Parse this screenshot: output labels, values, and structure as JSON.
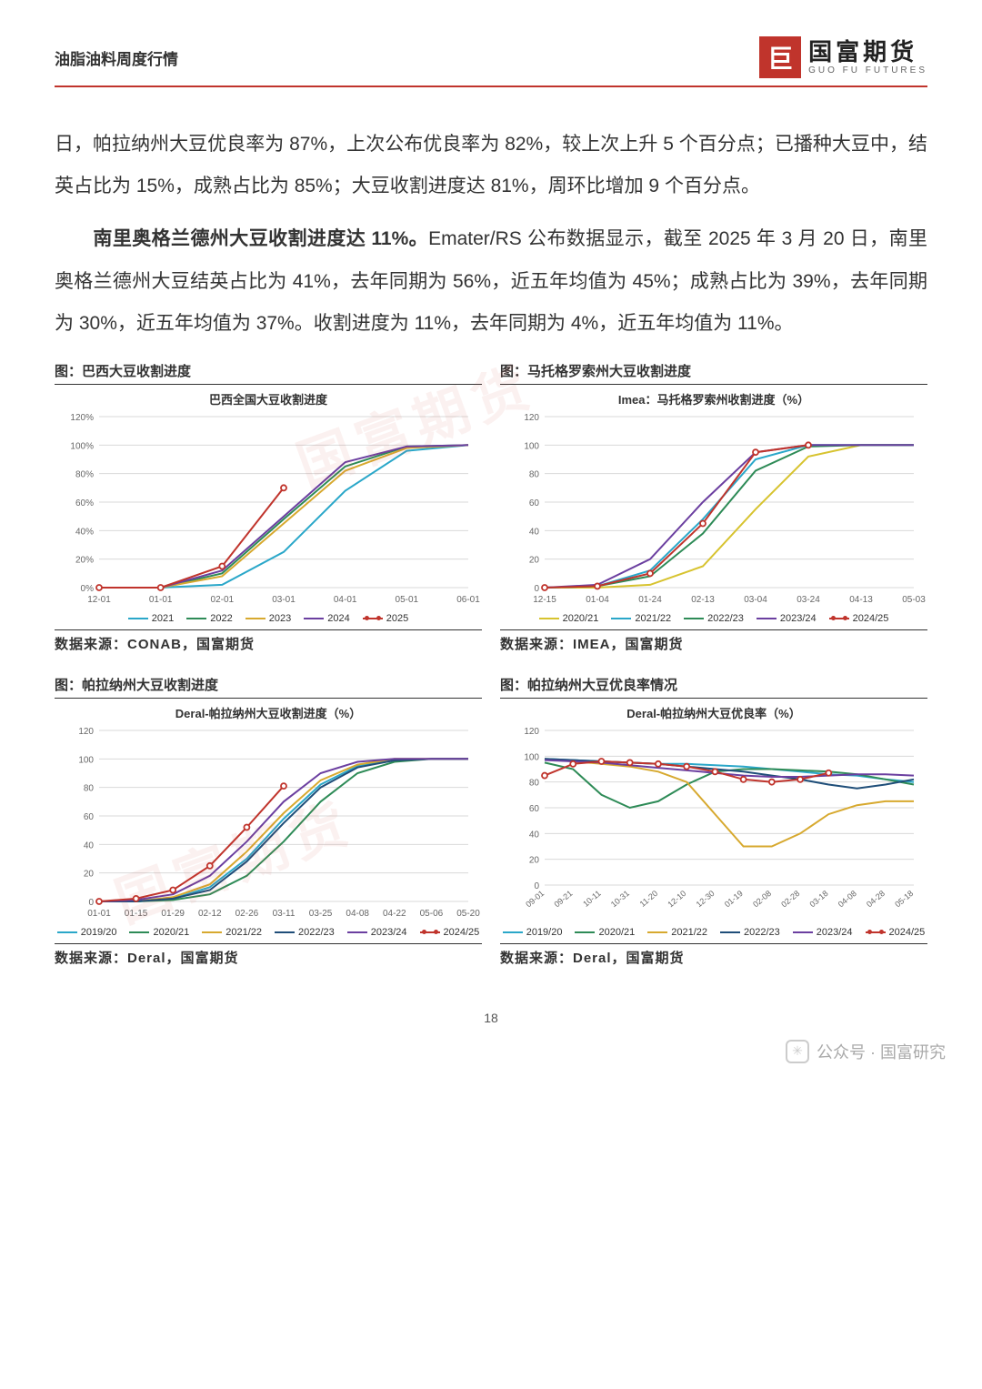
{
  "header": {
    "title": "油脂油料周度行情",
    "logo_cn": "国富期货",
    "logo_en": "GUO FU FUTURES",
    "logo_mark": "巨"
  },
  "paragraphs": {
    "p1": "日，帕拉纳州大豆优良率为 87%，上次公布优良率为 82%，较上次上升 5 个百分点；已播种大豆中，结英占比为 15%，成熟占比为 85%；大豆收割进度达 81%，周环比增加 9 个百分点。",
    "p2_bold": "南里奥格兰德州大豆收割进度达 11%。",
    "p2_rest": "Emater/RS 公布数据显示，截至 2025 年 3 月 20 日，南里奥格兰德州大豆结英占比为 41%，去年同期为 56%，近五年均值为 45%；成熟占比为 39%，去年同期为 30%，近五年均值为 37%。收割进度为 11%，去年同期为 4%，近五年均值为 11%。"
  },
  "watermark_text": "国富期货",
  "page_number": "18",
  "footer": {
    "account_label": "公众号 · 国富研究"
  },
  "palette": {
    "grid": "#d9d9d9",
    "axis": "#666666",
    "text": "#333333"
  },
  "charts": [
    {
      "caption": "图：巴西大豆收割进度",
      "subtitle": "巴西全国大豆收割进度",
      "source": "数据来源：CONAB，国富期货",
      "type": "line",
      "y_format": "percent",
      "ylim": [
        0,
        120
      ],
      "ytick_step": 20,
      "x_labels": [
        "12-01",
        "01-01",
        "02-01",
        "03-01",
        "04-01",
        "05-01",
        "06-01"
      ],
      "series": [
        {
          "name": "2021",
          "color": "#2aa7c9",
          "marker": false,
          "data": [
            0,
            0,
            2,
            25,
            68,
            96,
            100
          ]
        },
        {
          "name": "2022",
          "color": "#2e8b57",
          "marker": false,
          "data": [
            0,
            0,
            10,
            48,
            85,
            99,
            100
          ]
        },
        {
          "name": "2023",
          "color": "#d7a92f",
          "marker": false,
          "data": [
            0,
            0,
            8,
            45,
            82,
            98,
            100
          ]
        },
        {
          "name": "2024",
          "color": "#6b3fa0",
          "marker": false,
          "data": [
            0,
            0,
            12,
            50,
            88,
            99,
            100
          ]
        },
        {
          "name": "2025",
          "color": "#c0342c",
          "marker": true,
          "data": [
            0,
            0,
            15,
            70,
            null,
            null,
            null
          ]
        }
      ]
    },
    {
      "caption": "图：马托格罗索州大豆收割进度",
      "subtitle": "Imea：马托格罗索州收割进度（%）",
      "source": "数据来源：IMEA，国富期货",
      "type": "line",
      "y_format": "number",
      "ylim": [
        0,
        120
      ],
      "ytick_step": 20,
      "x_labels": [
        "12-15",
        "01-04",
        "01-24",
        "02-13",
        "03-04",
        "03-24",
        "04-13",
        "05-03"
      ],
      "series": [
        {
          "name": "2020/21",
          "color": "#d7c32f",
          "marker": false,
          "data": [
            0,
            0,
            2,
            15,
            55,
            92,
            100,
            100
          ]
        },
        {
          "name": "2021/22",
          "color": "#2aa7c9",
          "marker": false,
          "data": [
            0,
            1,
            12,
            48,
            90,
            100,
            100,
            100
          ]
        },
        {
          "name": "2022/23",
          "color": "#2e8b57",
          "marker": false,
          "data": [
            0,
            1,
            8,
            38,
            82,
            99,
            100,
            100
          ]
        },
        {
          "name": "2023/24",
          "color": "#6b3fa0",
          "marker": false,
          "data": [
            0,
            2,
            20,
            60,
            95,
            100,
            100,
            100
          ]
        },
        {
          "name": "2024/25",
          "color": "#c0342c",
          "marker": true,
          "data": [
            0,
            1,
            10,
            45,
            95,
            100,
            null,
            null
          ]
        }
      ]
    },
    {
      "caption": "图：帕拉纳州大豆收割进度",
      "subtitle": "Deral-帕拉纳州大豆收割进度（%）",
      "source": "数据来源：Deral，国富期货",
      "type": "line",
      "y_format": "number",
      "ylim": [
        0,
        120
      ],
      "ytick_step": 20,
      "x_labels": [
        "01-01",
        "01-15",
        "01-29",
        "02-12",
        "02-26",
        "03-11",
        "03-25",
        "04-08",
        "04-22",
        "05-06",
        "05-20"
      ],
      "series": [
        {
          "name": "2019/20",
          "color": "#2aa7c9",
          "marker": false,
          "data": [
            0,
            0,
            2,
            10,
            30,
            58,
            82,
            95,
            99,
            100,
            100
          ]
        },
        {
          "name": "2020/21",
          "color": "#2e8b57",
          "marker": false,
          "data": [
            0,
            0,
            1,
            5,
            18,
            42,
            70,
            90,
            98,
            100,
            100
          ]
        },
        {
          "name": "2021/22",
          "color": "#d7a92f",
          "marker": false,
          "data": [
            0,
            0,
            3,
            12,
            35,
            62,
            85,
            96,
            100,
            100,
            100
          ]
        },
        {
          "name": "2022/23",
          "color": "#1f4e79",
          "marker": false,
          "data": [
            0,
            0,
            2,
            8,
            28,
            55,
            80,
            94,
            99,
            100,
            100
          ]
        },
        {
          "name": "2023/24",
          "color": "#6b3fa0",
          "marker": false,
          "data": [
            0,
            1,
            5,
            18,
            42,
            70,
            90,
            98,
            100,
            100,
            100
          ]
        },
        {
          "name": "2024/25",
          "color": "#c0342c",
          "marker": true,
          "data": [
            0,
            2,
            8,
            25,
            52,
            81,
            null,
            null,
            null,
            null,
            null
          ]
        }
      ]
    },
    {
      "caption": "图：帕拉纳州大豆优良率情况",
      "subtitle": "Deral-帕拉纳州大豆优良率（%）",
      "source": "数据来源：Deral，国富期货",
      "type": "line",
      "y_format": "number",
      "ylim": [
        0,
        120
      ],
      "ytick_step": 20,
      "x_labels_rot": true,
      "x_labels": [
        "09-01",
        "09-21",
        "10-11",
        "10-31",
        "11-20",
        "12-10",
        "12-30",
        "01-19",
        "02-08",
        "02-28",
        "03-18",
        "04-08",
        "04-28",
        "05-18"
      ],
      "series": [
        {
          "name": "2019/20",
          "color": "#2aa7c9",
          "marker": false,
          "data": [
            98,
            97,
            96,
            95,
            94,
            94,
            93,
            92,
            90,
            88,
            86,
            85,
            82,
            80
          ]
        },
        {
          "name": "2020/21",
          "color": "#2e8b57",
          "marker": false,
          "data": [
            95,
            90,
            70,
            60,
            65,
            78,
            88,
            90,
            90,
            89,
            88,
            86,
            82,
            78
          ]
        },
        {
          "name": "2021/22",
          "color": "#d7a92f",
          "marker": false,
          "data": [
            98,
            96,
            94,
            92,
            88,
            80,
            55,
            30,
            30,
            40,
            55,
            62,
            65,
            65
          ]
        },
        {
          "name": "2022/23",
          "color": "#1f4e79",
          "marker": false,
          "data": [
            98,
            97,
            96,
            95,
            94,
            92,
            90,
            88,
            85,
            82,
            78,
            75,
            78,
            82
          ]
        },
        {
          "name": "2023/24",
          "color": "#6b3fa0",
          "marker": false,
          "data": [
            97,
            96,
            95,
            93,
            91,
            89,
            87,
            85,
            84,
            84,
            85,
            86,
            86,
            85
          ]
        },
        {
          "name": "2024/25",
          "color": "#c0342c",
          "marker": true,
          "data": [
            85,
            94,
            96,
            95,
            94,
            92,
            88,
            82,
            80,
            82,
            87,
            null,
            null,
            null
          ]
        }
      ]
    }
  ]
}
